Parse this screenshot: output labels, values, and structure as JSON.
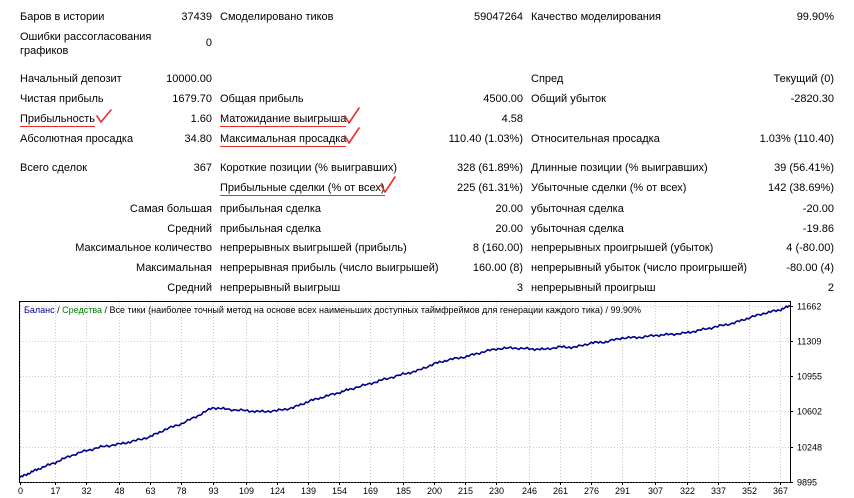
{
  "report": {
    "bars_label": "Баров в истории",
    "bars_value": "37439",
    "ticks_label": "Смоделировано тиков",
    "ticks_value": "59047264",
    "quality_label": "Качество моделирования",
    "quality_value": "99.90%",
    "errors_label": "Ошибки рассогласования графиков",
    "errors_value": "0",
    "deposit_label": "Начальный депозит",
    "deposit_value": "10000.00",
    "spread_label": "Спред",
    "spread_value": "Текущий (0)",
    "net_profit_label": "Чистая прибыль",
    "net_profit_value": "1679.70",
    "gross_profit_label": "Общая прибыль",
    "gross_profit_value": "4500.00",
    "gross_loss_label": "Общий убыток",
    "gross_loss_value": "-2820.30",
    "profit_factor_label": "Прибыльность",
    "profit_factor_value": "1.60",
    "expected_payoff_label": "Матожидание выигрыша",
    "expected_payoff_value": "4.58",
    "abs_drawdown_label": "Абсолютная просадка",
    "abs_drawdown_value": "34.80",
    "max_drawdown_label": "Максимальная просадка",
    "max_drawdown_value": "110.40 (1.03%)",
    "rel_drawdown_label": "Относительная просадка",
    "rel_drawdown_value": "1.03% (110.40)",
    "total_trades_label": "Всего сделок",
    "total_trades_value": "367",
    "short_label": "Короткие позиции (% выигравших)",
    "short_value": "328 (61.89%)",
    "long_label": "Длинные позиции (% выигравших)",
    "long_value": "39 (56.41%)",
    "profit_trades_label": "Прибыльные сделки (% от всех)",
    "profit_trades_value": "225 (61.31%)",
    "loss_trades_label": "Убыточные сделки (% от всех)",
    "loss_trades_value": "142 (38.69%)",
    "largest_label": "Самая большая",
    "largest_profit_label": "прибыльная сделка",
    "largest_profit_value": "20.00",
    "largest_loss_label": "убыточная сделка",
    "largest_loss_value": "-20.00",
    "average_label": "Средний",
    "average_profit_label": "прибыльная сделка",
    "average_profit_value": "20.00",
    "average_loss_label": "убыточная сделка",
    "average_loss_value": "-19.86",
    "max_count_label": "Максимальное количество",
    "max_cons_wins_label": "непрерывных выигрышей (прибыль)",
    "max_cons_wins_value": "8 (160.00)",
    "max_cons_losses_label": "непрерывных проигрышей (убыток)",
    "max_cons_losses_value": "4 (-80.00)",
    "maximal_label": "Максимальная",
    "max_cons_profit_label": "непрерывная прибыль (число выигрышей)",
    "max_cons_profit_value": "160.00 (8)",
    "max_cons_loss_label": "непрерывный убыток (число проигрышей)",
    "max_cons_loss_value": "-80.00 (4)",
    "avg_label": "Средний",
    "avg_cons_wins_label": "непрерывный выигрыш",
    "avg_cons_wins_value": "3",
    "avg_cons_losses_label": "непрерывный проигрыш",
    "avg_cons_losses_value": "2"
  },
  "legend": {
    "balance": "Баланс",
    "sep1": " / ",
    "equity": "Средства",
    "sep2": " / ",
    "method": "Все тики (наиболее точный метод на основе всех наименьших доступных таймфреймов для генерации каждого тика)",
    "sep3": " / ",
    "quality": "99.90%"
  },
  "colors": {
    "balance": "#00008b",
    "equity": "#008000",
    "annotation": "#e8302a",
    "grid": "#a0a0a0"
  },
  "chart_data": {
    "type": "line",
    "x_ticks": [
      0,
      17,
      32,
      48,
      63,
      78,
      93,
      109,
      124,
      139,
      154,
      169,
      185,
      200,
      215,
      230,
      246,
      261,
      276,
      291,
      307,
      322,
      337,
      352,
      367
    ],
    "y_ticks": [
      9895,
      10248,
      10602,
      10955,
      11309,
      11662
    ],
    "xlim": [
      0,
      372
    ],
    "ylim": [
      9895,
      11700
    ],
    "grid": true,
    "series": [
      {
        "name": "Баланс",
        "x": [
          0,
          5,
          10,
          17,
          24,
          32,
          40,
          48,
          55,
          63,
          70,
          78,
          86,
          93,
          100,
          109,
          116,
          124,
          132,
          139,
          146,
          154,
          160,
          169,
          176,
          185,
          192,
          200,
          207,
          215,
          222,
          230,
          238,
          246,
          253,
          261,
          268,
          276,
          283,
          291,
          299,
          307,
          314,
          322,
          329,
          337,
          345,
          352,
          360,
          367,
          372
        ],
        "y": [
          9940,
          9990,
          10035,
          10090,
          10155,
          10210,
          10250,
          10275,
          10305,
          10350,
          10420,
          10480,
          10560,
          10640,
          10625,
          10610,
          10600,
          10610,
          10640,
          10700,
          10745,
          10790,
          10830,
          10880,
          10925,
          10975,
          11010,
          11080,
          11120,
          11150,
          11190,
          11230,
          11240,
          11230,
          11225,
          11250,
          11245,
          11290,
          11300,
          11340,
          11345,
          11365,
          11375,
          11390,
          11420,
          11455,
          11490,
          11540,
          11590,
          11620,
          11662
        ]
      }
    ]
  }
}
